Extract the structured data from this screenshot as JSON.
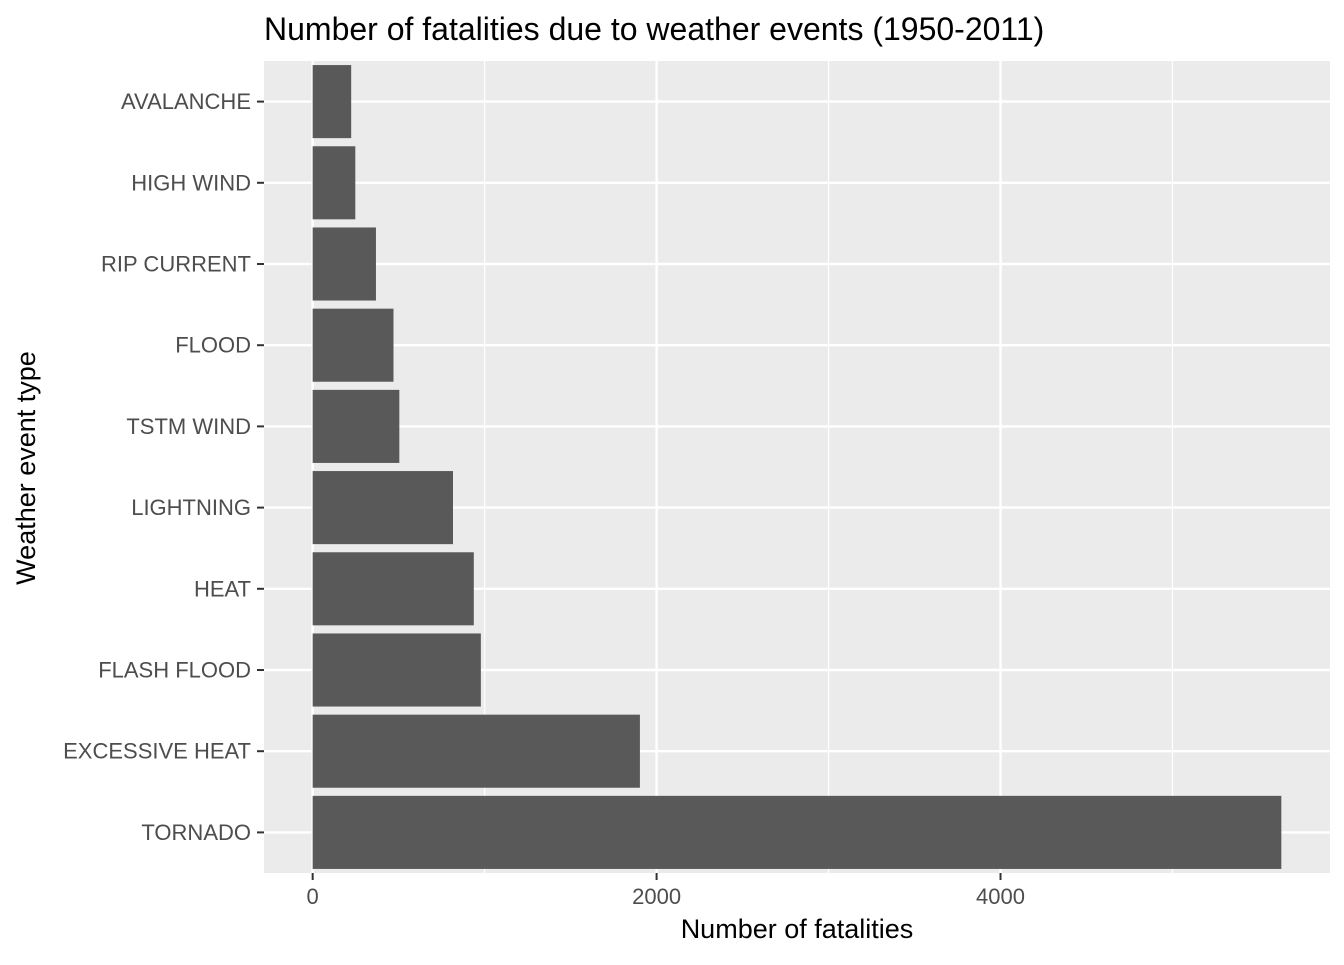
{
  "chart_data": {
    "type": "bar",
    "orientation": "horizontal",
    "title": "Number of fatalities due to weather events (1950-2011)",
    "xlabel": "Number of fatalities",
    "ylabel": "Weather event type",
    "categories": [
      "TORNADO",
      "EXCESSIVE HEAT",
      "FLASH FLOOD",
      "HEAT",
      "LIGHTNING",
      "TSTM WIND",
      "FLOOD",
      "RIP CURRENT",
      "HIGH WIND",
      "AVALANCHE"
    ],
    "values": [
      5633,
      1903,
      978,
      937,
      816,
      504,
      470,
      368,
      248,
      224
    ],
    "xlim": [
      -283,
      5916
    ],
    "x_ticks": [
      0,
      2000,
      4000
    ],
    "x_tick_labels": [
      "0",
      "2000",
      "4000"
    ],
    "grid": true,
    "legend": "none",
    "colors": {
      "bar": "#595959",
      "panel_background": "#ebebeb",
      "grid_line": "#ffffff",
      "tick_label": "#4d4d4d",
      "tick_mark": "#333333"
    }
  }
}
